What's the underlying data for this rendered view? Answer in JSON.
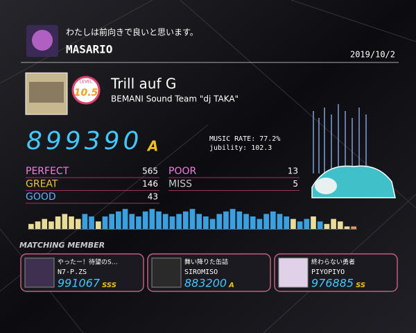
{
  "header": {
    "comment": "わたしは前向きで良いと思います。",
    "player": "MASARIO",
    "date": "2019/10/2"
  },
  "song": {
    "level_label": "LEVEL",
    "level": 10.5,
    "title": "Trill auf G",
    "artist": "BEMANI Sound Team \"dj TAKA\""
  },
  "result": {
    "score": 899390,
    "rank": "A",
    "music_rate": "MUSIC RATE: 77.2%",
    "jubility": "jubility: 102.3",
    "judgements": [
      {
        "label": "PERFECT",
        "value": 565
      },
      {
        "label": "GREAT",
        "value": 146
      },
      {
        "label": "GOOD",
        "value": 43
      },
      {
        "label": "POOR",
        "value": 13
      },
      {
        "label": "MISS",
        "value": 5
      }
    ]
  },
  "music_bar": {
    "values": [
      2,
      3,
      4,
      3,
      5,
      6,
      5,
      4,
      6,
      5,
      3,
      5,
      6,
      7,
      8,
      6,
      5,
      7,
      8,
      7,
      6,
      5,
      6,
      7,
      8,
      6,
      5,
      4,
      6,
      7,
      8,
      7,
      6,
      5,
      4,
      6,
      7,
      6,
      5,
      4,
      3,
      4,
      5,
      3,
      2,
      4,
      3,
      1,
      1
    ],
    "colors": [
      "#e8dc98",
      "#e8dc98",
      "#e8dc98",
      "#e8dc98",
      "#e8dc98",
      "#e8dc98",
      "#e8dc98",
      "#e8dc98",
      "#3aa0e0",
      "#3aa0e0",
      "#e8dc98",
      "#3aa0e0",
      "#3aa0e0",
      "#3aa0e0",
      "#3aa0e0",
      "#3aa0e0",
      "#3aa0e0",
      "#3aa0e0",
      "#3aa0e0",
      "#3aa0e0",
      "#3aa0e0",
      "#3aa0e0",
      "#3aa0e0",
      "#3aa0e0",
      "#3aa0e0",
      "#3aa0e0",
      "#3aa0e0",
      "#3aa0e0",
      "#3aa0e0",
      "#3aa0e0",
      "#3aa0e0",
      "#3aa0e0",
      "#3aa0e0",
      "#3aa0e0",
      "#3aa0e0",
      "#3aa0e0",
      "#3aa0e0",
      "#3aa0e0",
      "#3aa0e0",
      "#e8dc98",
      "#3aa0e0",
      "#3aa0e0",
      "#e8dc98",
      "#3aa0e0",
      "#e8dc98",
      "#e8dc98",
      "#e8dc98",
      "#e8dc98",
      "#e89060"
    ]
  },
  "matching": {
    "title": "MATCHING MEMBER",
    "members": [
      {
        "comment": "やったー！待望のS…",
        "name": "N7-P.ZS",
        "score": 991067,
        "rank": "SSS"
      },
      {
        "comment": "舞い降りた缶詰",
        "name": "SIROMISO",
        "score": 883200,
        "rank": "A"
      },
      {
        "comment": "終わらない勇者",
        "name": "PIYOPIYO",
        "score": 976885,
        "rank": "SS"
      }
    ]
  }
}
